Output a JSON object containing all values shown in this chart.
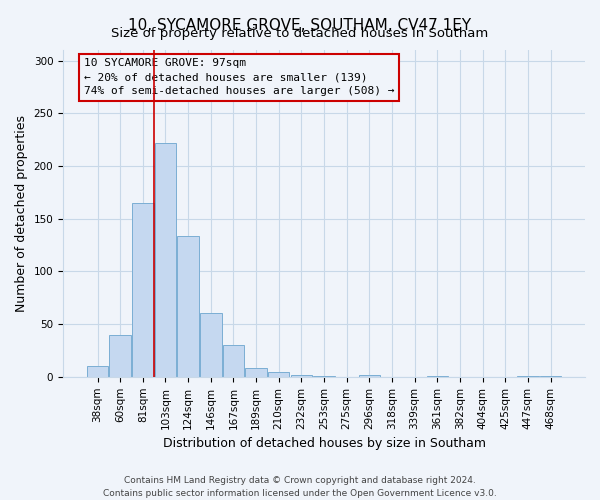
{
  "title": "10, SYCAMORE GROVE, SOUTHAM, CV47 1EY",
  "subtitle": "Size of property relative to detached houses in Southam",
  "xlabel": "Distribution of detached houses by size in Southam",
  "ylabel": "Number of detached properties",
  "bar_labels": [
    "38sqm",
    "60sqm",
    "81sqm",
    "103sqm",
    "124sqm",
    "146sqm",
    "167sqm",
    "189sqm",
    "210sqm",
    "232sqm",
    "253sqm",
    "275sqm",
    "296sqm",
    "318sqm",
    "339sqm",
    "361sqm",
    "382sqm",
    "404sqm",
    "425sqm",
    "447sqm",
    "468sqm"
  ],
  "bar_values": [
    10,
    40,
    165,
    222,
    134,
    61,
    30,
    8,
    5,
    2,
    1,
    0,
    2,
    0,
    0,
    1,
    0,
    0,
    0,
    1,
    1
  ],
  "bar_color": "#c5d8f0",
  "bar_edge_color": "#7baed4",
  "vline_position": 2.5,
  "vline_color": "#cc0000",
  "annotation_line1": "10 SYCAMORE GROVE: 97sqm",
  "annotation_line2": "← 20% of detached houses are smaller (139)",
  "annotation_line3": "74% of semi-detached houses are larger (508) →",
  "ylim": [
    0,
    310
  ],
  "yticks": [
    0,
    50,
    100,
    150,
    200,
    250,
    300
  ],
  "footer_line1": "Contains HM Land Registry data © Crown copyright and database right 2024.",
  "footer_line2": "Contains public sector information licensed under the Open Government Licence v3.0.",
  "bg_color": "#f0f4fa",
  "grid_color": "#c8d8e8",
  "title_fontsize": 11,
  "subtitle_fontsize": 9.5,
  "axis_label_fontsize": 9,
  "tick_fontsize": 7.5,
  "ann_fontsize": 8,
  "footer_fontsize": 6.5
}
